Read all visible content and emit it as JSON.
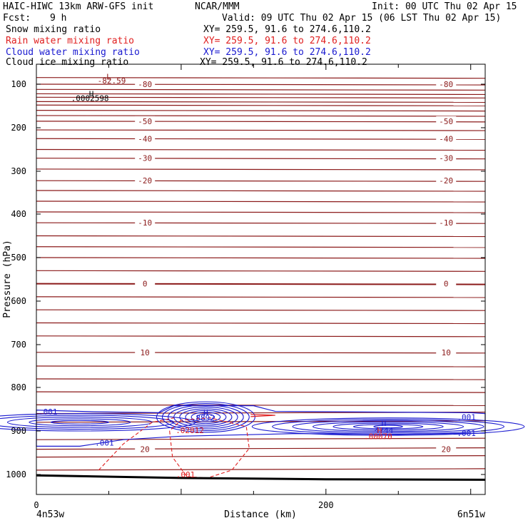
{
  "header": {
    "model": "HAIC-HIWC 13km ARW-GFS init",
    "org": "NCAR/MMM",
    "init": "Init: 00 UTC Thu 02 Apr 15",
    "fcst_label": "Fcst:",
    "fcst_value": "9 h",
    "valid": "Valid: 09 UTC Thu 02 Apr 15 (06 LST Thu 02 Apr 15)",
    "fields": [
      {
        "name": "Snow mixing ratio",
        "xy": "XY= 259.5, 91.6 to 274.6,110.2",
        "color": "#000000"
      },
      {
        "name": "Rain water mixing ratio",
        "xy": "XY= 259.5, 91.6 to 274.6,110.2",
        "color": "#e02020"
      },
      {
        "name": "Cloud water mixing ratio",
        "xy": "XY= 259.5, 91.6 to 274.6,110.2",
        "color": "#1a1ad0"
      },
      {
        "name": "Cloud ice mixing ratio",
        "xy": "XY= 259.5, 91.6 to 274.6,110.2",
        "color": "#000000"
      }
    ]
  },
  "chart_data": {
    "type": "line",
    "subtype": "vertical cross-section (contour)",
    "xlabel": "Distance (km)",
    "ylabel": "Pressure (hPa)",
    "xlim": [
      0,
      310
    ],
    "ylim": [
      1050,
      50
    ],
    "y_scale": "log-pressure",
    "x_ticks": [
      0,
      200
    ],
    "y_ticks": [
      100,
      200,
      300,
      400,
      500,
      600,
      700,
      800,
      900,
      1000
    ],
    "endpoint_labels": {
      "left": "4n53w",
      "right": "6n51w"
    },
    "temperature_contours_c": [
      {
        "value": -80,
        "pressure": 100,
        "label": "-80"
      },
      {
        "value": -50,
        "pressure": 185,
        "label": "-50"
      },
      {
        "value": -40,
        "pressure": 225,
        "label": "-40"
      },
      {
        "value": -30,
        "pressure": 270,
        "label": "-30"
      },
      {
        "value": -20,
        "pressure": 322,
        "label": "-20"
      },
      {
        "value": -10,
        "pressure": 420,
        "label": "-10"
      },
      {
        "value": 0,
        "pressure": 560,
        "label": "0"
      },
      {
        "value": 10,
        "pressure": 718,
        "label": "10"
      },
      {
        "value": 20,
        "pressure": 942,
        "label": "20"
      }
    ],
    "unlabeled_isotherm_pressures": [
      82,
      112,
      122,
      130,
      140,
      148,
      160,
      172,
      205,
      250,
      295,
      345,
      370,
      395,
      450,
      475,
      500,
      530,
      590,
      620,
      650,
      680,
      750,
      780,
      810,
      840,
      860,
      880,
      920,
      960,
      990
    ],
    "annotations": [
      {
        "text": "L",
        "x": 50,
        "pressure": 80,
        "color": "#8b1a1a"
      },
      {
        "text": "-82.59",
        "x": 52,
        "pressure": 90,
        "color": "#8b1a1a"
      },
      {
        "text": "H",
        "x": 38,
        "pressure": 122,
        "color": "#000000"
      },
      {
        "text": ".0002598",
        "x": 37,
        "pressure": 132,
        "color": "#000000"
      },
      {
        "text": "H",
        "x": 117,
        "pressure": 858,
        "color": "#1a1ad0"
      },
      {
        "text": ".8892",
        "x": 115,
        "pressure": 870,
        "color": "#1a1ad0"
      },
      {
        "text": ".02812",
        "x": 106,
        "pressure": 898,
        "color": "#e02020"
      },
      {
        "text": ".001",
        "x": 103,
        "pressure": 1000,
        "color": "#e02020"
      },
      {
        "text": ".001",
        "x": 8,
        "pressure": 856,
        "color": "#1a1ad0"
      },
      {
        "text": ".001",
        "x": 47,
        "pressure": 927,
        "color": "#1a1ad0"
      },
      {
        "text": "H",
        "x": 240,
        "pressure": 882,
        "color": "#1a1ad0"
      },
      {
        "text": "4744",
        "x": 240,
        "pressure": 898,
        "color": "#1a1ad0"
      },
      {
        "text": "H",
        "x": 237,
        "pressure": 898,
        "color": "#e02020"
      },
      {
        "text": ".00070",
        "x": 236,
        "pressure": 912,
        "color": "#e02020"
      },
      {
        "text": ".001",
        "x": 297,
        "pressure": 868,
        "color": "#1a1ad0"
      },
      {
        "text": ".001",
        "x": 297,
        "pressure": 905,
        "color": "#1a1ad0"
      }
    ],
    "cloud_water_max_gkg": 0.8892,
    "rain_water_max_gkg": 0.02812,
    "cloud_ice_max_gkg": 0.0002598,
    "colors": {
      "temperature": "#8b1a1a",
      "cloud_water": "#1a1ad0",
      "rain_water": "#e02020",
      "terrain": "#000000"
    }
  }
}
